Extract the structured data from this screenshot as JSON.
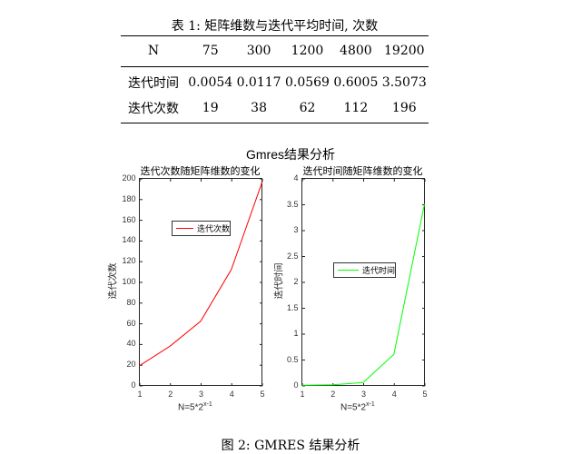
{
  "table": {
    "caption": "表 1: 矩阵维数与迭代平均时间, 次数",
    "header": [
      "N",
      "75",
      "300",
      "1200",
      "4800",
      "19200"
    ],
    "rows": [
      [
        "迭代时间",
        "0.0054",
        "0.0117",
        "0.0569",
        "0.6005",
        "3.5073"
      ],
      [
        "迭代次数",
        "19",
        "38",
        "62",
        "112",
        "196"
      ]
    ]
  },
  "figure": {
    "title": "Gmres结果分析",
    "caption": "图 2: GMRES 结果分析"
  },
  "chart_data": [
    {
      "type": "line",
      "title": "迭代次数随矩阵维数的变化",
      "xlabel": "N=5*2^(x-1)",
      "xlabel_base": "N=5*2",
      "xlabel_sup": "x-1",
      "ylabel": "迭代次数",
      "x": [
        1,
        2,
        3,
        4,
        5
      ],
      "xticks": [
        "1",
        "2",
        "3",
        "4",
        "5"
      ],
      "yticks": [
        "0",
        "20",
        "40",
        "60",
        "80",
        "100",
        "120",
        "140",
        "160",
        "180",
        "200"
      ],
      "xlim": [
        1,
        5
      ],
      "ylim": [
        0,
        200
      ],
      "series": [
        {
          "name": "迭代次数",
          "values": [
            19,
            38,
            62,
            112,
            196
          ],
          "color": "#ff0000"
        }
      ],
      "legend": "迭代次数",
      "grid": false
    },
    {
      "type": "line",
      "title": "迭代时间随矩阵维数的变化",
      "xlabel": "N=5*2^(x-1)",
      "xlabel_base": "N=5*2",
      "xlabel_sup": "x-1",
      "ylabel": "迭代时间",
      "x": [
        1,
        2,
        3,
        4,
        5
      ],
      "xticks": [
        "1",
        "2",
        "3",
        "4",
        "5"
      ],
      "yticks": [
        "0",
        "0.5",
        "1",
        "1.5",
        "2",
        "2.5",
        "3",
        "3.5",
        "4"
      ],
      "xlim": [
        1,
        5
      ],
      "ylim": [
        0,
        4
      ],
      "series": [
        {
          "name": "迭代时间",
          "values": [
            0.0054,
            0.0117,
            0.0569,
            0.6005,
            3.5073
          ],
          "color": "#00ff00"
        }
      ],
      "legend": "迭代时间",
      "grid": false
    }
  ]
}
